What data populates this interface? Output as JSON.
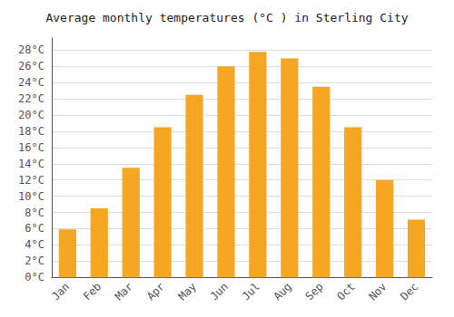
{
  "chart_data": {
    "type": "bar",
    "title": "Average monthly temperatures (°C ) in Sterling City",
    "categories": [
      "Jan",
      "Feb",
      "Mar",
      "Apr",
      "May",
      "Jun",
      "Jul",
      "Aug",
      "Sep",
      "Oct",
      "Nov",
      "Dec"
    ],
    "values": [
      5.9,
      8.5,
      13.5,
      18.5,
      22.5,
      26.0,
      27.8,
      27.0,
      23.5,
      18.5,
      12.0,
      7.1
    ],
    "color": "#F5A623",
    "ylim": [
      0,
      29.5
    ],
    "yticks": [
      {
        "value": 0,
        "label": "0°C"
      },
      {
        "value": 2,
        "label": "2°C"
      },
      {
        "value": 4,
        "label": "4°C"
      },
      {
        "value": 6,
        "label": "6°C"
      },
      {
        "value": 8,
        "label": "8°C"
      },
      {
        "value": 10,
        "label": "10°C"
      },
      {
        "value": 12,
        "label": "12°C"
      },
      {
        "value": 14,
        "label": "14°C"
      },
      {
        "value": 16,
        "label": "16°C"
      },
      {
        "value": 18,
        "label": "18°C"
      },
      {
        "value": 20,
        "label": "20°C"
      },
      {
        "value": 22,
        "label": "22°C"
      },
      {
        "value": 24,
        "label": "24°C"
      },
      {
        "value": 26,
        "label": "26°C"
      },
      {
        "value": 28,
        "label": "28°C"
      }
    ],
    "grid": true
  }
}
